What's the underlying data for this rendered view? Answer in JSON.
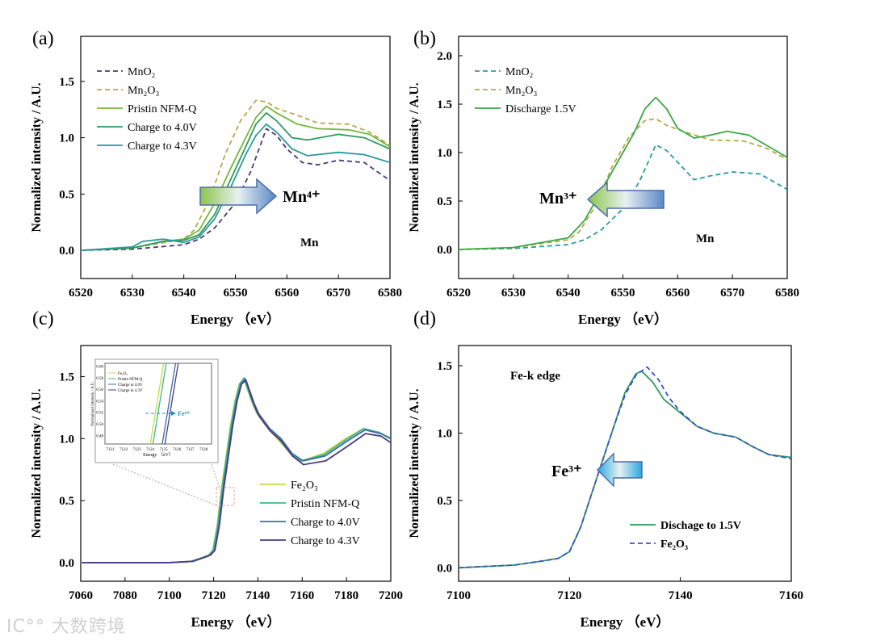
{
  "watermark": "大数跨境",
  "chart_data": [
    {
      "panel": "(a)",
      "type": "line",
      "xlabel": "Energy （eV）",
      "ylabel": "Normalized intensity / A.U.",
      "xlim": [
        6520,
        6580
      ],
      "ylim": [
        -0.25,
        1.9
      ],
      "xticks": [
        6520,
        6530,
        6540,
        6550,
        6560,
        6570,
        6580
      ],
      "yticks": [
        0.0,
        0.5,
        1.0,
        1.5
      ],
      "annotations": [
        {
          "text": "Mn",
          "kind": "label"
        },
        {
          "text": "Mn⁴⁺",
          "kind": "arrow-right"
        }
      ],
      "series": [
        {
          "name": "MnO₂",
          "color": "#4b3a78",
          "dash": true,
          "x": [
            6520,
            6530,
            6535,
            6540,
            6543,
            6546,
            6550,
            6553,
            6555,
            6556,
            6558,
            6560,
            6563,
            6566,
            6570,
            6575,
            6580
          ],
          "y": [
            0,
            0.01,
            0.03,
            0.05,
            0.1,
            0.2,
            0.42,
            0.7,
            0.95,
            1.08,
            1.02,
            0.9,
            0.78,
            0.76,
            0.8,
            0.78,
            0.62
          ]
        },
        {
          "name": "Mn₂O₃",
          "color": "#b8a845",
          "dash": true,
          "x": [
            6520,
            6530,
            6535,
            6540,
            6542,
            6545,
            6548,
            6551,
            6554,
            6556,
            6558,
            6562,
            6566,
            6572,
            6576,
            6580
          ],
          "y": [
            0,
            0.02,
            0.06,
            0.1,
            0.18,
            0.45,
            0.85,
            1.15,
            1.33,
            1.32,
            1.26,
            1.2,
            1.13,
            1.12,
            1.05,
            0.93
          ]
        },
        {
          "name": "Pristin NFM-Q",
          "color": "#72b83a",
          "dash": false,
          "x": [
            6520,
            6530,
            6536,
            6540,
            6543,
            6546,
            6549,
            6552,
            6554,
            6556,
            6558,
            6562,
            6566,
            6572,
            6576,
            6580
          ],
          "y": [
            0,
            0.02,
            0.08,
            0.1,
            0.18,
            0.42,
            0.72,
            1.0,
            1.18,
            1.28,
            1.22,
            1.12,
            1.08,
            1.07,
            1.03,
            0.92
          ]
        },
        {
          "name": "Charge to 4.0V",
          "color": "#2e9a5e",
          "dash": false,
          "x": [
            6520,
            6530,
            6536,
            6540,
            6543,
            6546,
            6549,
            6552,
            6554,
            6556,
            6558,
            6561,
            6564,
            6570,
            6575,
            6580
          ],
          "y": [
            0,
            0.02,
            0.08,
            0.09,
            0.14,
            0.32,
            0.62,
            0.92,
            1.12,
            1.22,
            1.15,
            1.0,
            0.98,
            1.03,
            1.0,
            0.9
          ]
        },
        {
          "name": "Charge to 4.3V",
          "color": "#2a9a9c",
          "dash": false,
          "x": [
            6520,
            6530,
            6532,
            6536,
            6540,
            6543,
            6546,
            6549,
            6552,
            6554,
            6556,
            6558,
            6561,
            6564,
            6570,
            6575,
            6580
          ],
          "y": [
            0,
            0.03,
            0.08,
            0.1,
            0.07,
            0.12,
            0.28,
            0.55,
            0.85,
            1.02,
            1.12,
            1.05,
            0.9,
            0.84,
            0.87,
            0.85,
            0.78
          ]
        }
      ]
    },
    {
      "panel": "(b)",
      "type": "line",
      "xlabel": "Energy （eV）",
      "ylabel": "Normalized intensity / A.U.",
      "xlim": [
        6520,
        6580
      ],
      "ylim": [
        -0.3,
        2.2
      ],
      "xticks": [
        6520,
        6530,
        6540,
        6550,
        6560,
        6570,
        6580
      ],
      "yticks": [
        0.0,
        0.5,
        1.0,
        1.5,
        2.0
      ],
      "annotations": [
        {
          "text": "Mn",
          "kind": "label"
        },
        {
          "text": "Mn³⁺",
          "kind": "arrow-left"
        }
      ],
      "series": [
        {
          "name": "MnO₂",
          "color": "#2a9a9c",
          "dash": true,
          "x": [
            6520,
            6530,
            6535,
            6540,
            6543,
            6546,
            6550,
            6553,
            6555,
            6556,
            6558,
            6560,
            6563,
            6566,
            6570,
            6575,
            6580
          ],
          "y": [
            0,
            0.01,
            0.03,
            0.05,
            0.1,
            0.2,
            0.42,
            0.7,
            0.95,
            1.08,
            1.02,
            0.9,
            0.72,
            0.76,
            0.8,
            0.78,
            0.62
          ]
        },
        {
          "name": "Mn₂O₃",
          "color": "#b8a845",
          "dash": true,
          "x": [
            6520,
            6530,
            6535,
            6540,
            6542,
            6545,
            6548,
            6551,
            6554,
            6556,
            6558,
            6562,
            6566,
            6572,
            6576,
            6580
          ],
          "y": [
            0,
            0.02,
            0.06,
            0.1,
            0.18,
            0.45,
            0.85,
            1.15,
            1.33,
            1.35,
            1.28,
            1.2,
            1.13,
            1.12,
            1.05,
            0.93
          ]
        },
        {
          "name": "Discharge 1.5V",
          "color": "#3aa845",
          "dash": false,
          "x": [
            6520,
            6530,
            6536,
            6540,
            6543,
            6546,
            6549,
            6552,
            6554,
            6556,
            6558,
            6560,
            6563,
            6566,
            6569,
            6573,
            6577,
            6580
          ],
          "y": [
            0,
            0.02,
            0.08,
            0.12,
            0.3,
            0.6,
            0.9,
            1.2,
            1.45,
            1.57,
            1.45,
            1.25,
            1.15,
            1.18,
            1.22,
            1.18,
            1.05,
            0.95
          ]
        }
      ]
    },
    {
      "panel": "(c)",
      "type": "line",
      "xlabel": "Energy （eV）",
      "ylabel": "Normalized intensity / A.U.",
      "xlim": [
        7060,
        7200
      ],
      "ylim": [
        -0.15,
        1.75
      ],
      "xticks": [
        7060,
        7080,
        7100,
        7120,
        7140,
        7160,
        7180,
        7200
      ],
      "yticks": [
        0.0,
        0.5,
        1.0,
        1.5
      ],
      "inset": {
        "xticks": [
          7121,
          7122,
          7123,
          7124,
          7125,
          7126,
          7127,
          7128
        ],
        "yticks": [
          0.48,
          0.5,
          0.52,
          0.54,
          0.56,
          0.58,
          0.6
        ],
        "xlabel": "Energy （eV）",
        "ylabel": "Normalized intensity / A.U.",
        "legend": [
          "Fe₂O₃",
          "Pristin NFM-Q",
          "Charge to 4.0V",
          "Charge to 4.3V"
        ],
        "annotation": "Fe⁴⁺"
      },
      "series": [
        {
          "name": "Fe₂O₃",
          "color": "#c8d84a",
          "dash": false,
          "shift": -0.4,
          "x": [
            7060,
            7100,
            7110,
            7115,
            7118,
            7120,
            7122,
            7124,
            7126,
            7128,
            7130,
            7132,
            7134,
            7136,
            7138,
            7140,
            7145,
            7150,
            7155,
            7160,
            7170,
            7180,
            7188,
            7195,
            7200
          ],
          "y": [
            0,
            0.0,
            0.01,
            0.04,
            0.06,
            0.1,
            0.3,
            0.6,
            0.85,
            1.1,
            1.3,
            1.44,
            1.48,
            1.38,
            1.28,
            1.2,
            1.08,
            0.98,
            0.88,
            0.82,
            0.88,
            1.0,
            1.08,
            1.05,
            1.0
          ]
        },
        {
          "name": "Pristin NFM-Q",
          "color": "#3cb88a",
          "dash": false,
          "shift": -0.2,
          "x": [
            7060,
            7100,
            7110,
            7115,
            7118,
            7120,
            7122,
            7124,
            7126,
            7128,
            7130,
            7132,
            7134,
            7136,
            7138,
            7140,
            7145,
            7150,
            7155,
            7160,
            7170,
            7180,
            7188,
            7195,
            7200
          ],
          "y": [
            0,
            0.0,
            0.01,
            0.04,
            0.06,
            0.1,
            0.3,
            0.6,
            0.85,
            1.1,
            1.3,
            1.44,
            1.49,
            1.38,
            1.28,
            1.2,
            1.08,
            0.99,
            0.88,
            0.82,
            0.87,
            0.99,
            1.08,
            1.05,
            1.0
          ]
        },
        {
          "name": "Charge to 4.0V",
          "color": "#3e6ea0",
          "dash": false,
          "shift": 0.4,
          "x": [
            7060,
            7100,
            7110,
            7115,
            7118,
            7120,
            7122,
            7124,
            7126,
            7128,
            7130,
            7132,
            7134,
            7136,
            7138,
            7140,
            7145,
            7150,
            7155,
            7160,
            7170,
            7180,
            7188,
            7195,
            7200
          ],
          "y": [
            0,
            0.0,
            0.01,
            0.04,
            0.06,
            0.1,
            0.3,
            0.6,
            0.85,
            1.1,
            1.3,
            1.44,
            1.48,
            1.38,
            1.28,
            1.2,
            1.08,
            1.0,
            0.88,
            0.82,
            0.86,
            0.98,
            1.07,
            1.04,
            1.0
          ]
        },
        {
          "name": "Charge to 4.3V",
          "color": "#4a3a8a",
          "dash": false,
          "shift": 0.6,
          "x": [
            7060,
            7100,
            7110,
            7115,
            7118,
            7120,
            7122,
            7124,
            7126,
            7128,
            7130,
            7132,
            7134,
            7136,
            7138,
            7140,
            7145,
            7150,
            7155,
            7160,
            7170,
            7180,
            7188,
            7195,
            7200
          ],
          "y": [
            0,
            0.0,
            0.01,
            0.04,
            0.06,
            0.1,
            0.3,
            0.6,
            0.85,
            1.1,
            1.3,
            1.44,
            1.47,
            1.36,
            1.26,
            1.18,
            1.06,
            0.98,
            0.86,
            0.79,
            0.82,
            0.94,
            1.04,
            1.02,
            0.96
          ]
        }
      ]
    },
    {
      "panel": "(d)",
      "type": "line",
      "xlabel": "Energy （eV）",
      "ylabel": "Normalized intensity / A.U.",
      "xlim": [
        7100,
        7160
      ],
      "ylim": [
        -0.1,
        1.65
      ],
      "xticks": [
        7100,
        7120,
        7140,
        7160
      ],
      "yticks": [
        0.0,
        0.5,
        1.0,
        1.5
      ],
      "annotations": [
        {
          "text": "Fe-k edge",
          "kind": "label"
        },
        {
          "text": "Fe³⁺",
          "kind": "arrow-left"
        }
      ],
      "series": [
        {
          "name": "Dischage to 1.5V",
          "color": "#2e9a5e",
          "dash": false,
          "x": [
            7100,
            7105,
            7110,
            7115,
            7118,
            7120,
            7122,
            7124,
            7126,
            7128,
            7130,
            7132,
            7133,
            7135,
            7137,
            7140,
            7143,
            7146,
            7150,
            7153,
            7156,
            7160
          ],
          "y": [
            0,
            0.01,
            0.02,
            0.05,
            0.07,
            0.12,
            0.3,
            0.55,
            0.8,
            1.05,
            1.3,
            1.44,
            1.46,
            1.38,
            1.25,
            1.15,
            1.05,
            1.0,
            0.97,
            0.9,
            0.84,
            0.82
          ]
        },
        {
          "name": "Fe₂O₃",
          "color": "#3a4ec8",
          "dash": true,
          "x": [
            7100,
            7105,
            7110,
            7115,
            7118,
            7120,
            7122,
            7124,
            7126,
            7128,
            7130,
            7132,
            7134,
            7136,
            7138,
            7140,
            7143,
            7146,
            7150,
            7153,
            7156,
            7160
          ],
          "y": [
            0,
            0.01,
            0.02,
            0.05,
            0.07,
            0.12,
            0.3,
            0.55,
            0.8,
            1.05,
            1.28,
            1.43,
            1.49,
            1.4,
            1.26,
            1.16,
            1.05,
            1.0,
            0.97,
            0.9,
            0.84,
            0.81
          ]
        }
      ]
    }
  ]
}
